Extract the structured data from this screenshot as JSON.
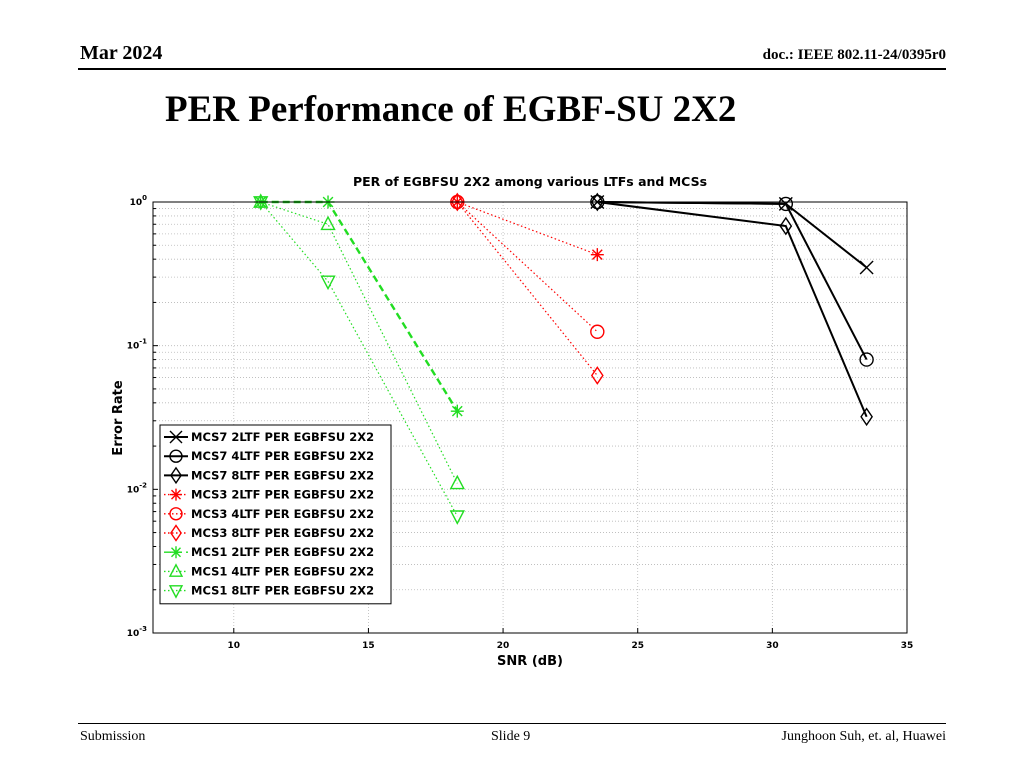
{
  "slide": {
    "date": "Mar 2024",
    "doc": "doc.: IEEE 802.11-24/0395r0",
    "title": "PER Performance of EGBF-SU 2X2",
    "footer_left": "Submission",
    "footer_center": "Slide 9",
    "footer_right": "Junghoon Suh, et. al, Huawei"
  },
  "chart_data": {
    "type": "line",
    "title": "PER of EGBFSU 2X2 among various LTFs and MCSs",
    "xlabel": "SNR (dB)",
    "ylabel": "Error Rate",
    "xlim": [
      7,
      35
    ],
    "ylim": [
      0.001,
      1
    ],
    "yscale": "log",
    "xticks": [
      "10",
      "15",
      "20",
      "25",
      "30",
      "35"
    ],
    "yticks": [
      "10^0",
      "10^-1",
      "10^-2",
      "10^-3"
    ],
    "grid": true,
    "legend_position": "lower-left",
    "series": [
      {
        "name": "MCS7 2LTF PER EGBFSU 2X2",
        "color": "#000000",
        "linestyle": "solid",
        "marker": "x",
        "x": [
          23.5,
          30.5,
          33.5
        ],
        "y": [
          1.0,
          0.97,
          0.35
        ]
      },
      {
        "name": "MCS7 4LTF PER EGBFSU 2X2",
        "color": "#000000",
        "linestyle": "solid",
        "marker": "circle",
        "x": [
          23.5,
          30.5,
          33.5
        ],
        "y": [
          1.0,
          0.97,
          0.08
        ]
      },
      {
        "name": "MCS7 8LTF PER EGBFSU 2X2",
        "color": "#000000",
        "linestyle": "solid",
        "marker": "diamond",
        "x": [
          23.5,
          30.5,
          33.5
        ],
        "y": [
          1.0,
          0.68,
          0.032
        ]
      },
      {
        "name": "MCS3 2LTF PER EGBFSU 2X2",
        "color": "#ff0000",
        "linestyle": "dotted",
        "marker": "asterisk",
        "x": [
          18.3,
          23.5
        ],
        "y": [
          1.0,
          0.43
        ]
      },
      {
        "name": "MCS3 4LTF PER EGBFSU 2X2",
        "color": "#ff0000",
        "linestyle": "dotted",
        "marker": "circle",
        "x": [
          18.3,
          23.5
        ],
        "y": [
          1.0,
          0.125
        ]
      },
      {
        "name": "MCS3 8LTF PER EGBFSU 2X2",
        "color": "#ff0000",
        "linestyle": "dotted",
        "marker": "diamond",
        "x": [
          18.3,
          23.5
        ],
        "y": [
          1.0,
          0.062
        ]
      },
      {
        "name": "MCS1 2LTF PER EGBFSU 2X2",
        "color": "#22dd22",
        "linestyle": "dashed",
        "marker": "asterisk",
        "x": [
          11.0,
          13.5,
          18.3
        ],
        "y": [
          1.0,
          1.0,
          0.035
        ]
      },
      {
        "name": "MCS1 4LTF PER EGBFSU 2X2",
        "color": "#22dd22",
        "linestyle": "dotted",
        "marker": "triangle-up",
        "x": [
          11.0,
          13.5,
          18.3
        ],
        "y": [
          1.0,
          0.7,
          0.011
        ]
      },
      {
        "name": "MCS1 8LTF PER EGBFSU 2X2",
        "color": "#22dd22",
        "linestyle": "dotted",
        "marker": "triangle-down",
        "x": [
          11.0,
          13.5,
          18.3
        ],
        "y": [
          1.0,
          0.28,
          0.0065
        ]
      }
    ]
  }
}
